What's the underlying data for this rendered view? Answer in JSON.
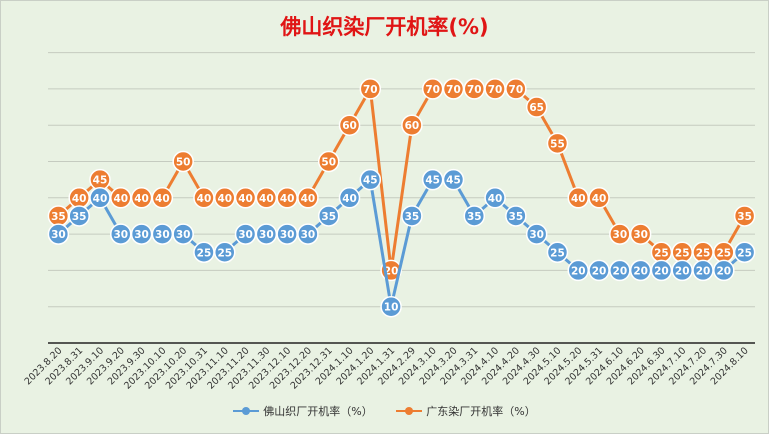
{
  "chart_data": {
    "type": "line",
    "title": "佛山织染厂开机率(%)",
    "categories": [
      "2023.8.20",
      "2023.8.31",
      "2023.9.10",
      "2023.9.20",
      "2023.9.30",
      "2023.10.10",
      "2023.10.20",
      "2023.10.31",
      "2023.11.10",
      "2023.11.20",
      "2023.11.30",
      "2023.12.10",
      "2023.12.20",
      "2023.12.31",
      "2024.1.10",
      "2024.1.20",
      "2024.1.31",
      "2024.2.29",
      "2024.3.10",
      "2024.3.20",
      "2024.3.31",
      "2024.4.10",
      "2024.4.20",
      "2024.4.30",
      "2024.5.10",
      "2024.5.20",
      "2024.5.31",
      "2024.6.10",
      "2024.6.20",
      "2024.6.30",
      "2024.7.10",
      "2024.7.20",
      "2024.7.30",
      "2024.8.10"
    ],
    "series": [
      {
        "name": "佛山织厂开机率（%）",
        "color": "#5b9bd5",
        "values": [
          30,
          35,
          40,
          30,
          30,
          30,
          30,
          25,
          25,
          30,
          30,
          30,
          30,
          35,
          40,
          45,
          10,
          35,
          45,
          45,
          35,
          40,
          35,
          30,
          25,
          20,
          20,
          20,
          20,
          20,
          20,
          20,
          20,
          25
        ]
      },
      {
        "name": "广东染厂开机率（%）",
        "color": "#ed7d31",
        "values": [
          35,
          40,
          45,
          40,
          40,
          40,
          50,
          40,
          40,
          40,
          40,
          40,
          40,
          50,
          60,
          70,
          20,
          60,
          70,
          70,
          70,
          70,
          70,
          65,
          55,
          40,
          40,
          30,
          30,
          25,
          25,
          25,
          25,
          35
        ]
      }
    ],
    "grid": true,
    "legend": "bottom"
  }
}
